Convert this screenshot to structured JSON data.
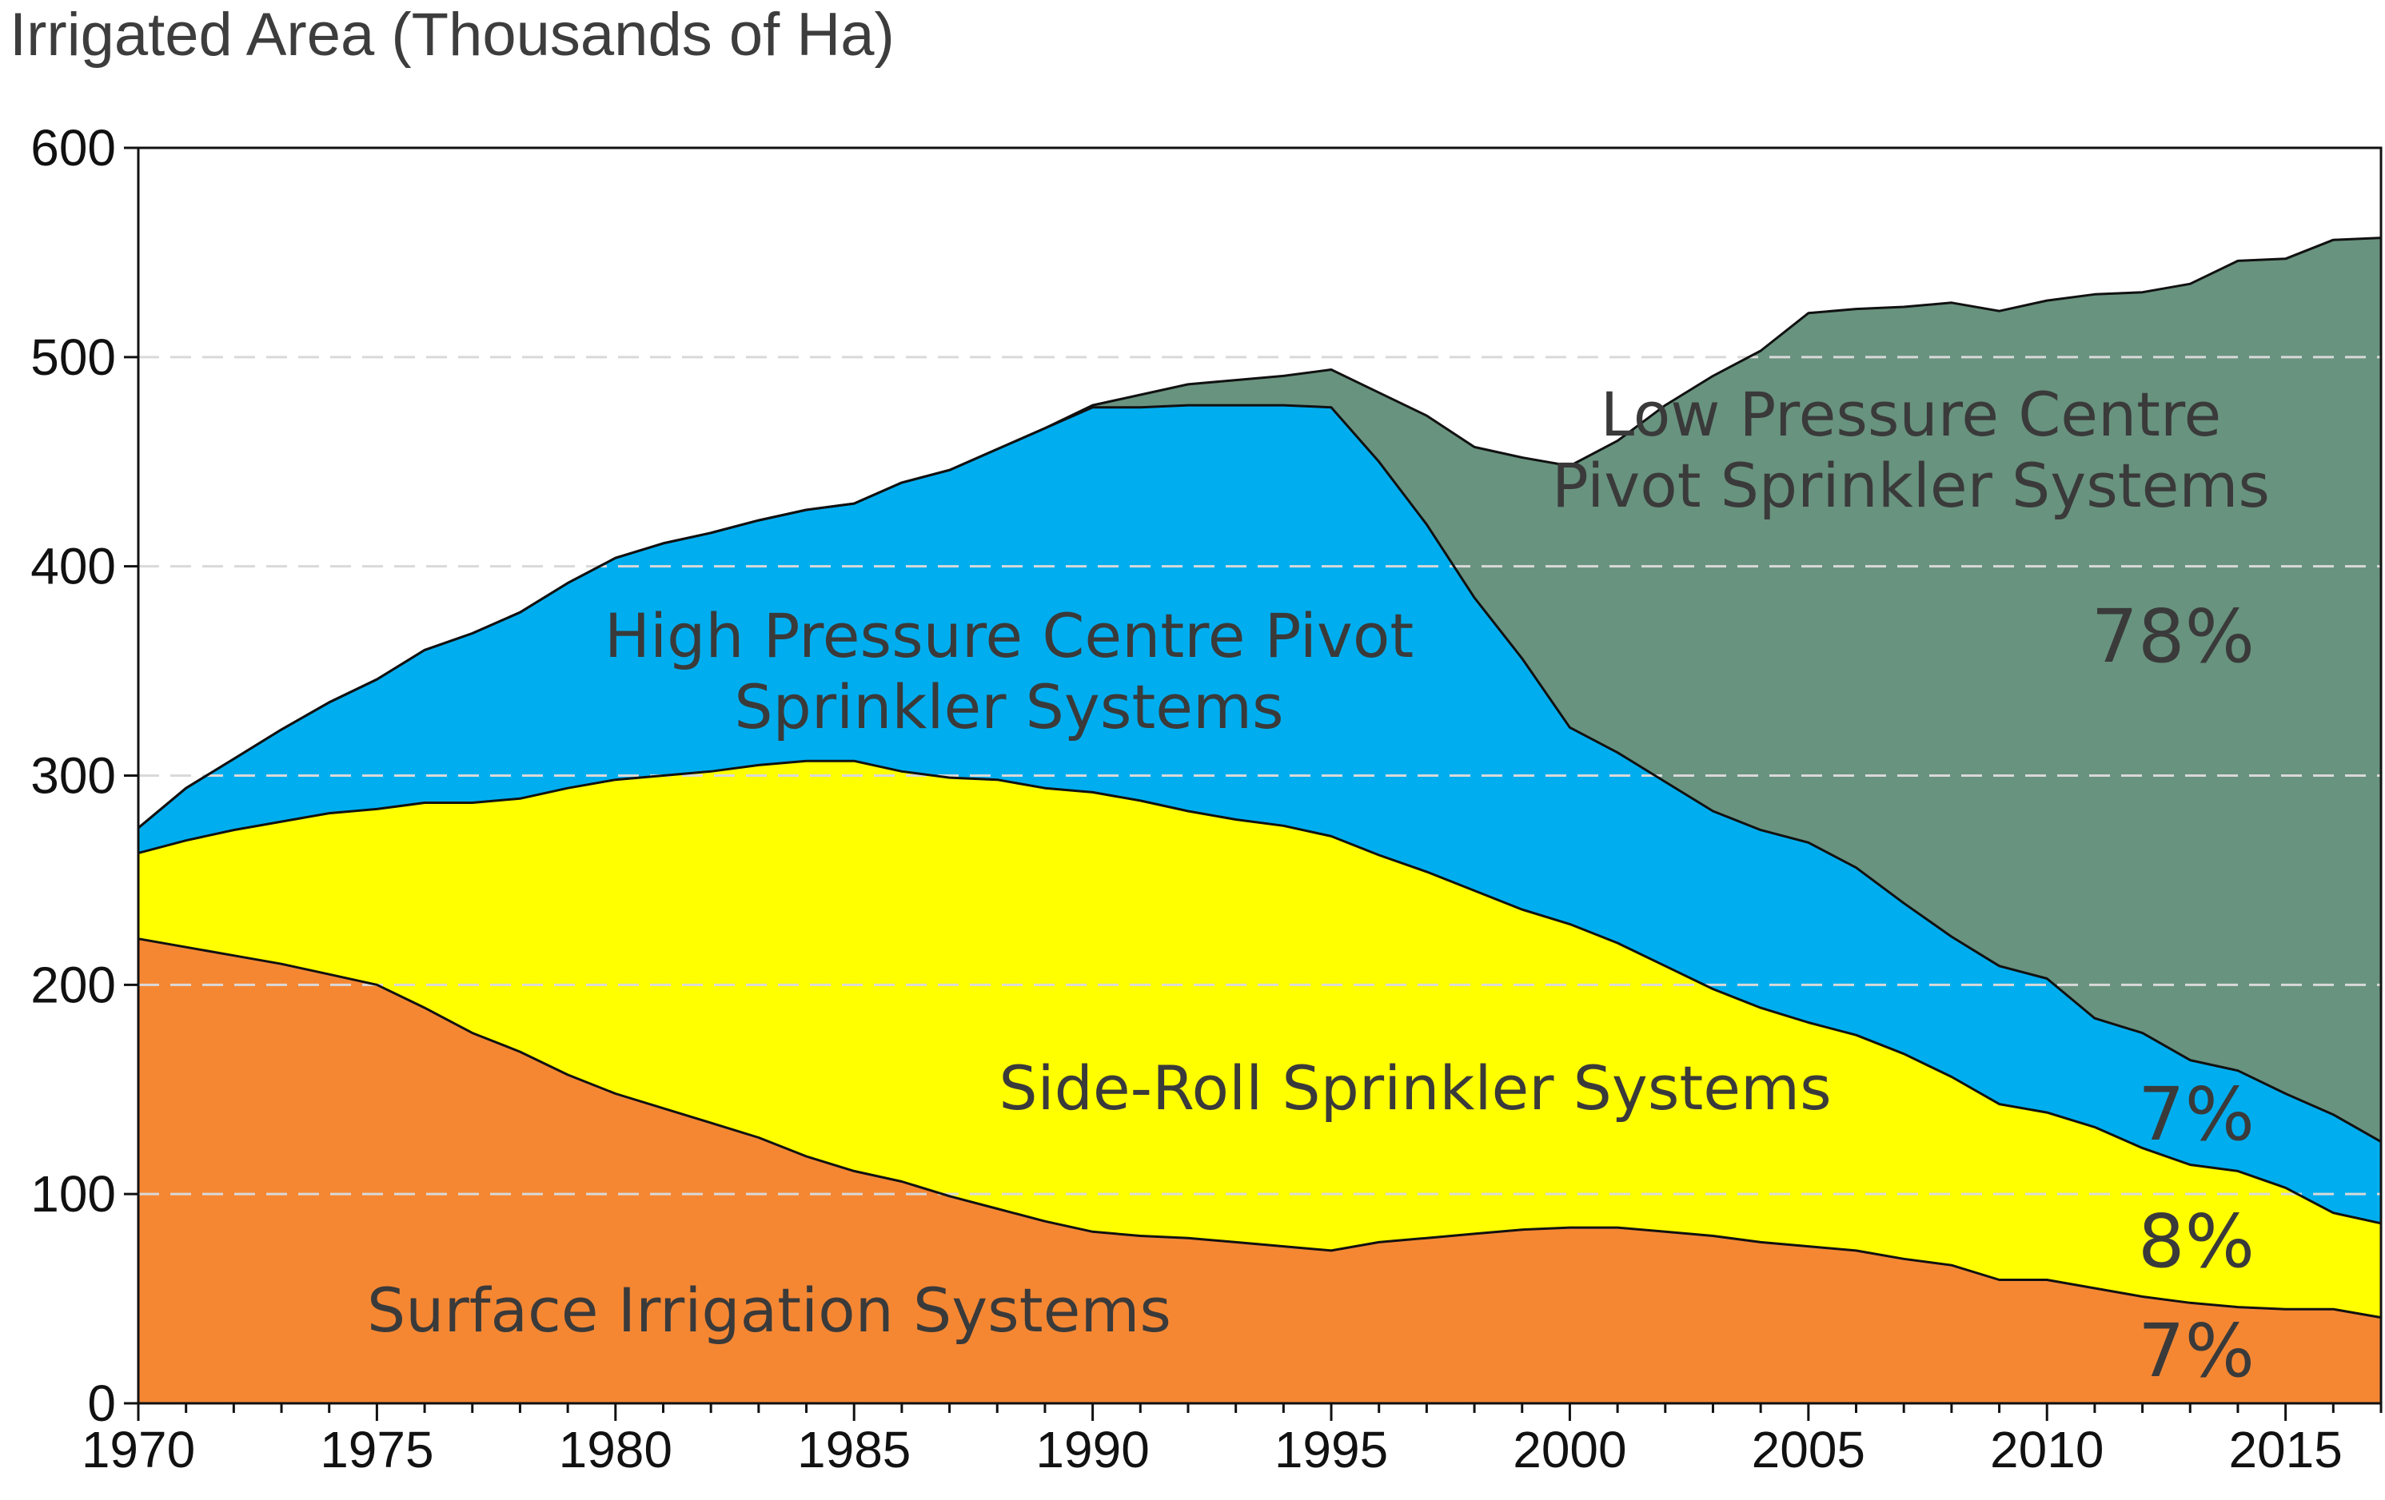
{
  "chart_data": {
    "type": "area",
    "stacked": true,
    "title": "Irrigated Area (Thousands of Ha)",
    "xlabel": "",
    "ylabel": "",
    "xlim": [
      1970,
      2017
    ],
    "ylim": [
      0,
      600
    ],
    "x_ticks": [
      "1970",
      "1975",
      "1980",
      "1985",
      "1990",
      "1995",
      "2000",
      "2005",
      "2010",
      "2015"
    ],
    "y_ticks": [
      "0",
      "100",
      "200",
      "300",
      "400",
      "500",
      "600"
    ],
    "grid": "horizontal dashed",
    "x": [
      1970,
      1971,
      1972,
      1973,
      1974,
      1975,
      1976,
      1977,
      1978,
      1979,
      1980,
      1981,
      1982,
      1983,
      1984,
      1985,
      1986,
      1987,
      1988,
      1989,
      1990,
      1991,
      1992,
      1993,
      1994,
      1995,
      1996,
      1997,
      1998,
      1999,
      2000,
      2001,
      2002,
      2003,
      2004,
      2005,
      2006,
      2007,
      2008,
      2009,
      2010,
      2011,
      2012,
      2013,
      2014,
      2015,
      2016,
      2017
    ],
    "series": [
      {
        "name": "Surface Irrigation Systems",
        "color": "#f58733",
        "values": [
          222,
          218,
          214,
          210,
          205,
          200,
          189,
          177,
          168,
          157,
          148,
          141,
          134,
          127,
          118,
          111,
          106,
          99,
          93,
          87,
          82,
          80,
          79,
          77,
          75,
          73,
          77,
          79,
          81,
          83,
          84,
          84,
          82,
          80,
          77,
          75,
          73,
          69,
          66,
          59,
          59,
          55,
          51,
          48,
          46,
          45,
          45,
          41
        ]
      },
      {
        "name": "Side-Roll Sprinkler Systems",
        "color": "#ffff00",
        "values": [
          41,
          51,
          60,
          68,
          77,
          84,
          98,
          110,
          121,
          137,
          150,
          159,
          168,
          178,
          189,
          196,
          196,
          200,
          205,
          207,
          210,
          208,
          204,
          202,
          201,
          198,
          185,
          175,
          164,
          153,
          145,
          136,
          127,
          118,
          112,
          107,
          103,
          98,
          90,
          84,
          80,
          77,
          71,
          66,
          65,
          58,
          46,
          45
        ]
      },
      {
        "name": "High Pressure Centre Pivot Sprinkler Systems",
        "color": "#00aeef",
        "values": [
          12,
          25,
          34,
          44,
          53,
          62,
          73,
          81,
          89,
          98,
          106,
          111,
          114,
          117,
          120,
          123,
          138,
          147,
          158,
          172,
          184,
          188,
          194,
          198,
          201,
          205,
          188,
          166,
          140,
          120,
          94,
          91,
          88,
          85,
          85,
          86,
          80,
          72,
          67,
          66,
          64,
          52,
          55,
          50,
          48,
          45,
          47,
          39
        ]
      },
      {
        "name": "Low Pressure Centre Pivot Sprinkler Systems",
        "color": "#68937f",
        "values": [
          0,
          0,
          0,
          0,
          0,
          0,
          0,
          0,
          0,
          0,
          0,
          0,
          0,
          0,
          0,
          0,
          0,
          0,
          0,
          0,
          1,
          6,
          10,
          12,
          14,
          18,
          33,
          52,
          72,
          96,
          125,
          149,
          180,
          208,
          229,
          253,
          267,
          285,
          303,
          313,
          324,
          346,
          354,
          371,
          387,
          399,
          418,
          432
        ]
      }
    ],
    "labels": {
      "surface": "Surface Irrigation Systems",
      "side_roll": "Side-Roll Sprinkler Systems",
      "high_pressure_line1": "High Pressure Centre Pivot",
      "high_pressure_line2": "Sprinkler Systems",
      "low_pressure_line1": "Low Pressure Centre",
      "low_pressure_line2": "Pivot Sprinkler Systems"
    },
    "percent_labels": {
      "low_pressure": "78%",
      "high_pressure": "7%",
      "side_roll": "8%",
      "surface": "7%"
    }
  }
}
